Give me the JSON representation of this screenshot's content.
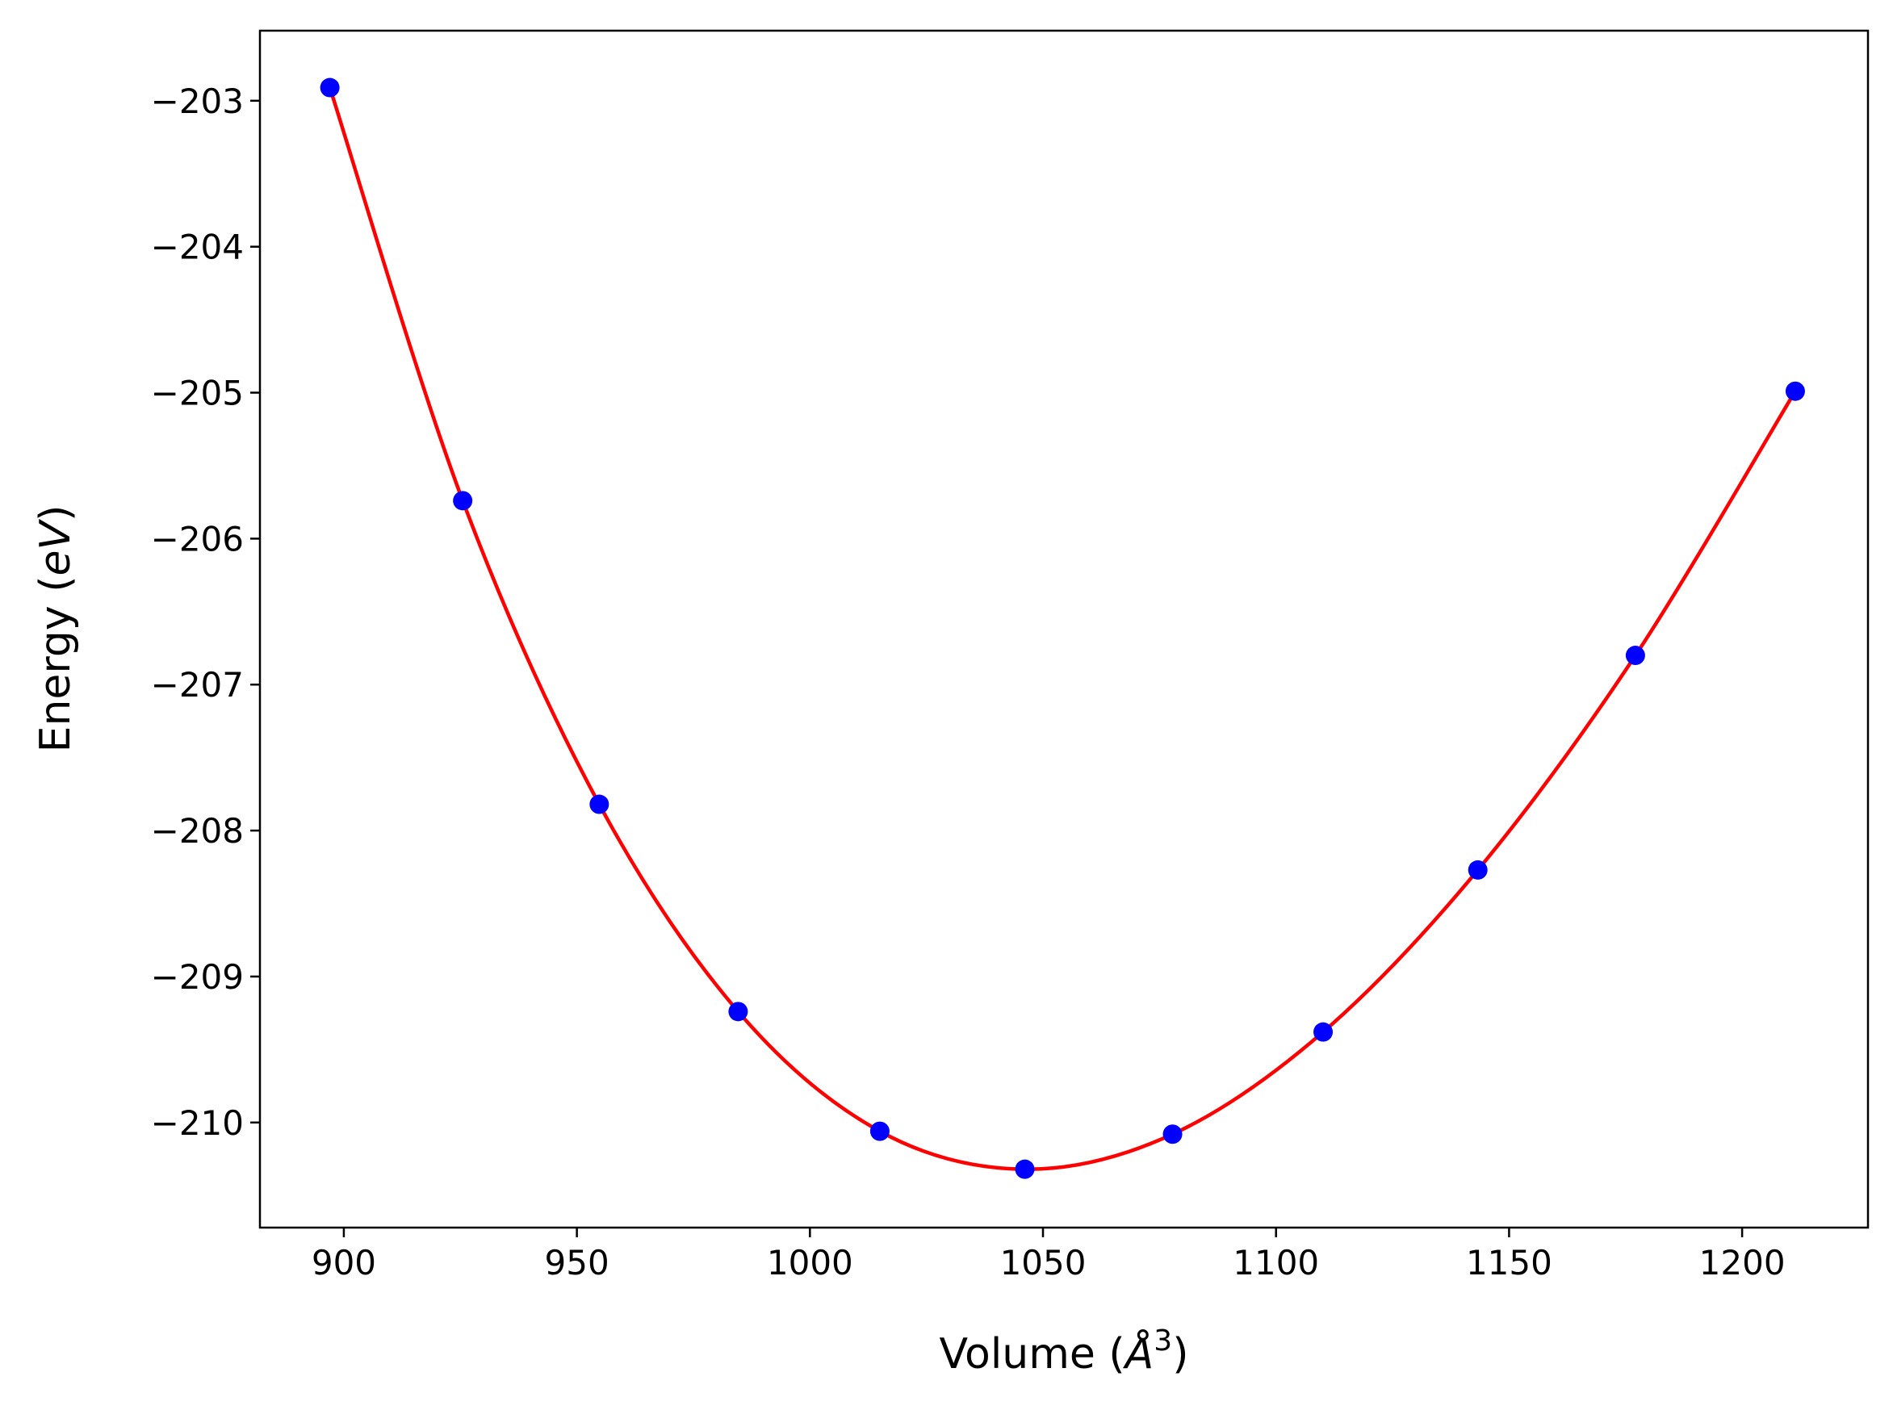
{
  "chart_data": {
    "type": "scatter",
    "title": "",
    "xlabel": "Volume",
    "xlabel_unit": "Å",
    "xlabel_unit_sup": "3",
    "ylabel": "Energy",
    "ylabel_unit": "eV",
    "xlim": [
      882,
      1227
    ],
    "ylim": [
      -210.72,
      -202.52
    ],
    "xticks": [
      900,
      950,
      1000,
      1050,
      1100,
      1150,
      1200
    ],
    "yticks": [
      -203,
      -204,
      -205,
      -206,
      -207,
      -208,
      -209,
      -210
    ],
    "xtick_labels": [
      "900",
      "950",
      "1000",
      "1050",
      "1100",
      "1150",
      "1200"
    ],
    "ytick_labels": [
      "−203",
      "−204",
      "−205",
      "−206",
      "−207",
      "−208",
      "−209",
      "−210"
    ],
    "grid": false,
    "legend": "none",
    "series": [
      {
        "kind": "points",
        "color": "#0000ff",
        "x": [
          897,
          925.5,
          954.8,
          984.6,
          1015,
          1046.1,
          1077.8,
          1110.1,
          1143.3,
          1177.1,
          1211.4
        ],
        "y": [
          -202.91,
          -205.74,
          -207.82,
          -209.24,
          -210.06,
          -210.32,
          -210.08,
          -209.38,
          -208.27,
          -206.8,
          -204.99
        ]
      },
      {
        "kind": "fit-line",
        "color": "#ff0000",
        "x": [
          897,
          925.5,
          954.8,
          984.6,
          1015,
          1046.1,
          1077.8,
          1110.1,
          1143.3,
          1177.1,
          1211.4
        ],
        "y": [
          -202.91,
          -205.74,
          -207.82,
          -209.24,
          -210.06,
          -210.32,
          -210.08,
          -209.38,
          -208.27,
          -206.8,
          -204.99
        ]
      }
    ]
  }
}
